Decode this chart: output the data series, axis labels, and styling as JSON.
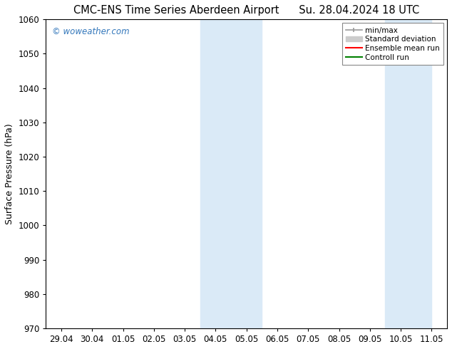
{
  "title_left": "CMC-ENS Time Series Aberdeen Airport",
  "title_right": "Su. 28.04.2024 18 UTC",
  "ylabel": "Surface Pressure (hPa)",
  "ylim": [
    970,
    1060
  ],
  "yticks": [
    970,
    980,
    990,
    1000,
    1010,
    1020,
    1030,
    1040,
    1050,
    1060
  ],
  "xlabel_ticks": [
    "29.04",
    "30.04",
    "01.05",
    "02.05",
    "03.05",
    "04.05",
    "05.05",
    "06.05",
    "07.05",
    "08.05",
    "09.05",
    "10.05",
    "11.05"
  ],
  "x_positions": [
    0,
    1,
    2,
    3,
    4,
    5,
    6,
    7,
    8,
    9,
    10,
    11,
    12
  ],
  "shaded_regions": [
    {
      "xmin": 5,
      "xmax": 7
    },
    {
      "xmin": 11,
      "xmax": 12.5
    }
  ],
  "shaded_color": "#daeaf7",
  "watermark_text": "© woweather.com",
  "watermark_color": "#3377bb",
  "legend_items": [
    {
      "label": "min/max",
      "color": "#999999",
      "lw": 1.2,
      "ls": "-",
      "type": "line_with_caps"
    },
    {
      "label": "Standard deviation",
      "color": "#cccccc",
      "lw": 8,
      "ls": "-",
      "type": "patch"
    },
    {
      "label": "Ensemble mean run",
      "color": "red",
      "lw": 1.5,
      "ls": "-",
      "type": "line"
    },
    {
      "label": "Controll run",
      "color": "green",
      "lw": 1.5,
      "ls": "-",
      "type": "line"
    }
  ],
  "bg_color": "#ffffff",
  "plot_bg_color": "#ffffff",
  "spine_color": "#000000",
  "tick_color": "#000000",
  "title_fontsize": 10.5,
  "label_fontsize": 9,
  "tick_fontsize": 8.5
}
